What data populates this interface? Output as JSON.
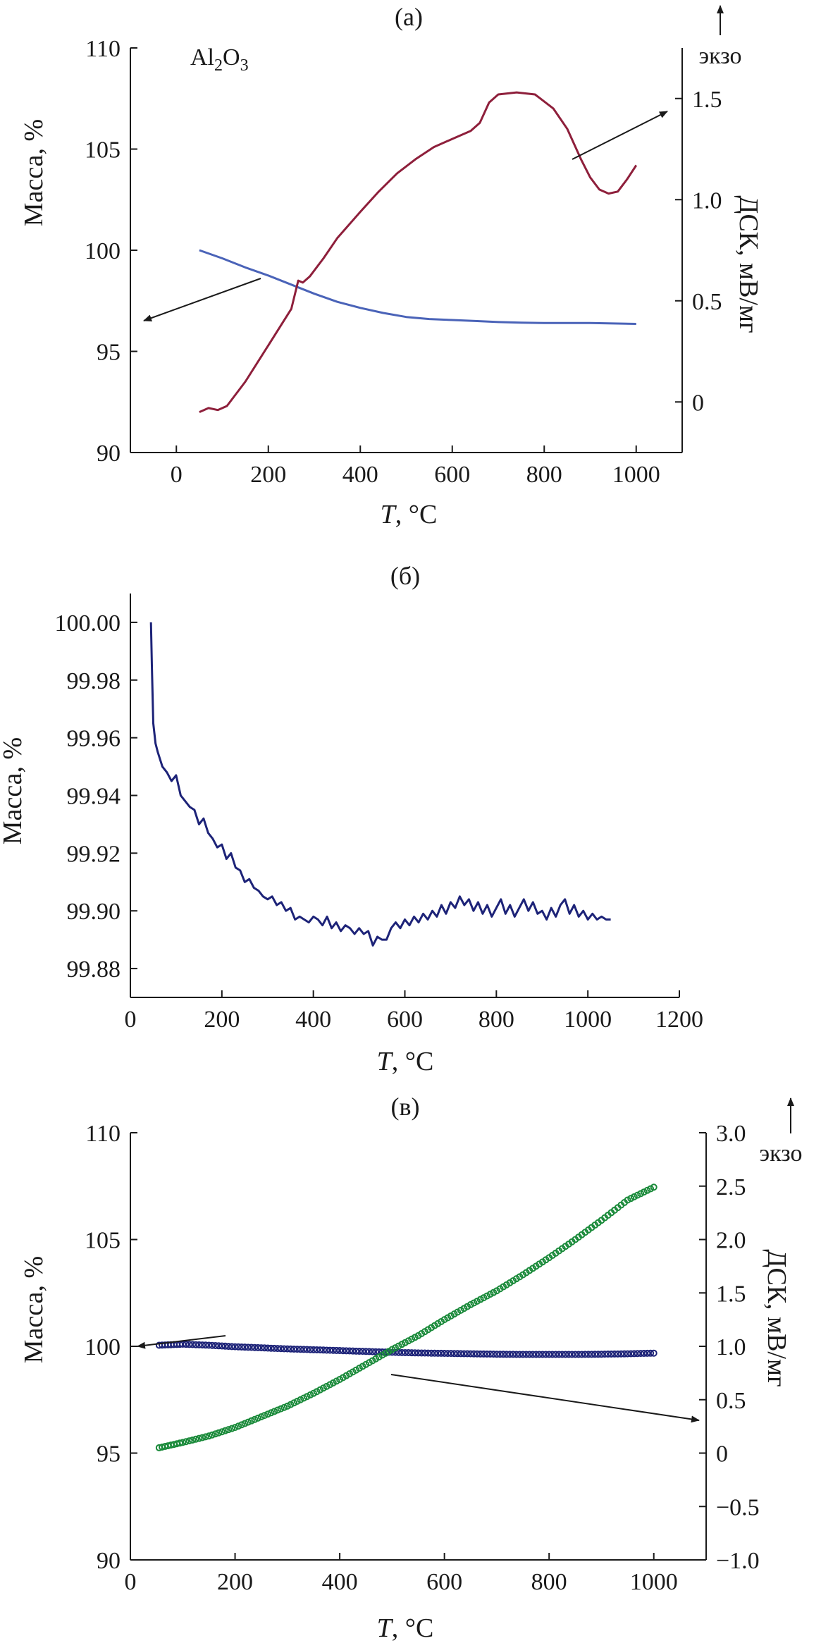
{
  "chart_data": [
    {
      "panel_label": "(а)",
      "type": "line",
      "annotation": "Al2O3",
      "annotation_base": "Al",
      "annotation_sub1": "2",
      "annotation_mid": "O",
      "annotation_sub2": "3",
      "xlabel": "T",
      "xlabel_unit": ", °C",
      "ylabel": "Масса, %",
      "y2label": "ДСК, мВ/мг",
      "exo_label": "экзо",
      "xlim": [
        -100,
        1100
      ],
      "ylim": [
        90,
        110
      ],
      "y2lim": [
        -0.25,
        1.75
      ],
      "xticks": [
        "0",
        "200",
        "400",
        "600",
        "800",
        "1000"
      ],
      "xtick_values": [
        0,
        200,
        400,
        600,
        800,
        1000
      ],
      "yticks": [
        "90",
        "95",
        "100",
        "105",
        "110"
      ],
      "ytick_values": [
        90,
        95,
        100,
        105,
        110
      ],
      "y2ticks": [
        "0",
        "0.5",
        "1.0",
        "1.5"
      ],
      "y2tick_values": [
        0,
        0.5,
        1.0,
        1.5
      ],
      "grid": false,
      "series": [
        {
          "axis": "left",
          "color": "#4a63b8",
          "x": [
            50,
            100,
            150,
            200,
            250,
            300,
            350,
            400,
            450,
            500,
            550,
            600,
            650,
            700,
            750,
            800,
            850,
            900,
            950,
            1000
          ],
          "y": [
            100.0,
            99.6,
            99.15,
            98.75,
            98.3,
            97.85,
            97.45,
            97.15,
            96.9,
            96.7,
            96.6,
            96.55,
            96.5,
            96.45,
            96.42,
            96.4,
            96.4,
            96.4,
            96.38,
            96.36
          ]
        },
        {
          "axis": "right",
          "color": "#8e1f3b",
          "x": [
            50,
            70,
            90,
            110,
            150,
            200,
            250,
            265,
            275,
            290,
            320,
            350,
            400,
            440,
            480,
            520,
            560,
            600,
            640,
            660,
            680,
            700,
            740,
            780,
            820,
            850,
            880,
            900,
            920,
            940,
            960,
            980,
            1000
          ],
          "y": [
            -0.05,
            -0.03,
            -0.04,
            -0.02,
            0.1,
            0.28,
            0.46,
            0.6,
            0.59,
            0.62,
            0.71,
            0.81,
            0.94,
            1.04,
            1.13,
            1.2,
            1.26,
            1.3,
            1.34,
            1.38,
            1.48,
            1.52,
            1.53,
            1.52,
            1.45,
            1.35,
            1.2,
            1.11,
            1.05,
            1.03,
            1.04,
            1.1,
            1.17
          ]
        }
      ]
    },
    {
      "panel_label": "(б)",
      "type": "line",
      "xlabel": "T",
      "xlabel_unit": ", °C",
      "ylabel": "Масса, %",
      "xlim": [
        0,
        1200
      ],
      "ylim": [
        99.87,
        100.01
      ],
      "xticks": [
        "0",
        "200",
        "400",
        "600",
        "800",
        "1000",
        "1200"
      ],
      "xtick_values": [
        0,
        200,
        400,
        600,
        800,
        1000,
        1200
      ],
      "yticks": [
        "99.88",
        "99.90",
        "99.92",
        "99.94",
        "99.96",
        "99.98",
        "100.00"
      ],
      "ytick_values": [
        99.88,
        99.9,
        99.92,
        99.94,
        99.96,
        99.98,
        100.0
      ],
      "grid": false,
      "series": [
        {
          "color": "#1d2378",
          "x": [
            45,
            47,
            50,
            55,
            60,
            70,
            80,
            90,
            100,
            110,
            120,
            130,
            140,
            150,
            160,
            170,
            180,
            190,
            200,
            210,
            220,
            230,
            240,
            250,
            260,
            270,
            280,
            290,
            300,
            310,
            320,
            330,
            340,
            350,
            360,
            370,
            380,
            390,
            400,
            410,
            420,
            430,
            440,
            450,
            460,
            470,
            480,
            490,
            500,
            510,
            520,
            530,
            540,
            550,
            560,
            570,
            580,
            590,
            600,
            610,
            620,
            630,
            640,
            650,
            660,
            670,
            680,
            690,
            700,
            710,
            720,
            730,
            740,
            750,
            760,
            770,
            780,
            790,
            800,
            810,
            820,
            830,
            840,
            850,
            860,
            870,
            880,
            890,
            900,
            910,
            920,
            930,
            940,
            950,
            960,
            970,
            980,
            990,
            1000,
            1010,
            1020,
            1030,
            1040,
            1050
          ],
          "y": [
            100.0,
            99.985,
            99.965,
            99.958,
            99.955,
            99.95,
            99.948,
            99.945,
            99.947,
            99.94,
            99.938,
            99.936,
            99.935,
            99.93,
            99.932,
            99.927,
            99.925,
            99.922,
            99.923,
            99.918,
            99.92,
            99.915,
            99.914,
            99.91,
            99.911,
            99.908,
            99.907,
            99.905,
            99.904,
            99.905,
            99.902,
            99.903,
            99.9,
            99.901,
            99.897,
            99.898,
            99.897,
            99.896,
            99.898,
            99.897,
            99.895,
            99.898,
            99.894,
            99.896,
            99.893,
            99.895,
            99.894,
            99.892,
            99.894,
            99.892,
            99.893,
            99.888,
            99.891,
            99.89,
            99.89,
            99.894,
            99.896,
            99.894,
            99.897,
            99.895,
            99.898,
            99.896,
            99.899,
            99.897,
            99.9,
            99.898,
            99.902,
            99.899,
            99.903,
            99.901,
            99.905,
            99.902,
            99.904,
            99.9,
            99.903,
            99.899,
            99.902,
            99.898,
            99.901,
            99.904,
            99.899,
            99.902,
            99.898,
            99.901,
            99.904,
            99.9,
            99.903,
            99.899,
            99.9,
            99.897,
            99.901,
            99.898,
            99.902,
            99.904,
            99.899,
            99.902,
            99.898,
            99.9,
            99.897,
            99.899,
            99.897,
            99.898,
            99.897,
            99.897
          ]
        }
      ]
    },
    {
      "panel_label": "(в)",
      "type": "scatter",
      "xlabel": "T",
      "xlabel_unit": ", °C",
      "ylabel": "Масса, %",
      "y2label": "ДСК, мВ/мг",
      "exo_label": "экзо",
      "xlim": [
        0,
        1100
      ],
      "ylim": [
        90,
        110
      ],
      "y2lim": [
        -1.0,
        3.0
      ],
      "xticks": [
        "0",
        "200",
        "400",
        "600",
        "800",
        "1000"
      ],
      "xtick_values": [
        0,
        200,
        400,
        600,
        800,
        1000
      ],
      "yticks": [
        "90",
        "95",
        "100",
        "105",
        "110"
      ],
      "ytick_values": [
        90,
        95,
        100,
        105,
        110
      ],
      "y2ticks": [
        "−1.0",
        "−0.5",
        "0",
        "0.5",
        "1.0",
        "1.5",
        "2.0",
        "2.5",
        "3.0"
      ],
      "y2tick_values": [
        -1.0,
        -0.5,
        0,
        0.5,
        1.0,
        1.5,
        2.0,
        2.5,
        3.0
      ],
      "grid": false,
      "series": [
        {
          "axis": "left",
          "color": "#1d2378",
          "x": [
            55,
            100,
            150,
            200,
            250,
            300,
            350,
            400,
            450,
            500,
            550,
            600,
            650,
            700,
            750,
            800,
            850,
            900,
            950,
            1000
          ],
          "y": [
            100.05,
            100.1,
            100.05,
            99.98,
            99.93,
            99.88,
            99.84,
            99.8,
            99.76,
            99.72,
            99.69,
            99.67,
            99.65,
            99.63,
            99.62,
            99.62,
            99.62,
            99.63,
            99.65,
            99.68
          ]
        },
        {
          "axis": "right",
          "color": "#1a8a3a",
          "x": [
            55,
            100,
            150,
            200,
            250,
            300,
            350,
            400,
            450,
            500,
            550,
            600,
            650,
            700,
            750,
            800,
            850,
            900,
            950,
            1000
          ],
          "y": [
            0.05,
            0.1,
            0.16,
            0.24,
            0.34,
            0.44,
            0.56,
            0.69,
            0.83,
            0.97,
            1.1,
            1.25,
            1.39,
            1.52,
            1.67,
            1.83,
            2.0,
            2.18,
            2.37,
            2.49
          ]
        }
      ]
    }
  ]
}
